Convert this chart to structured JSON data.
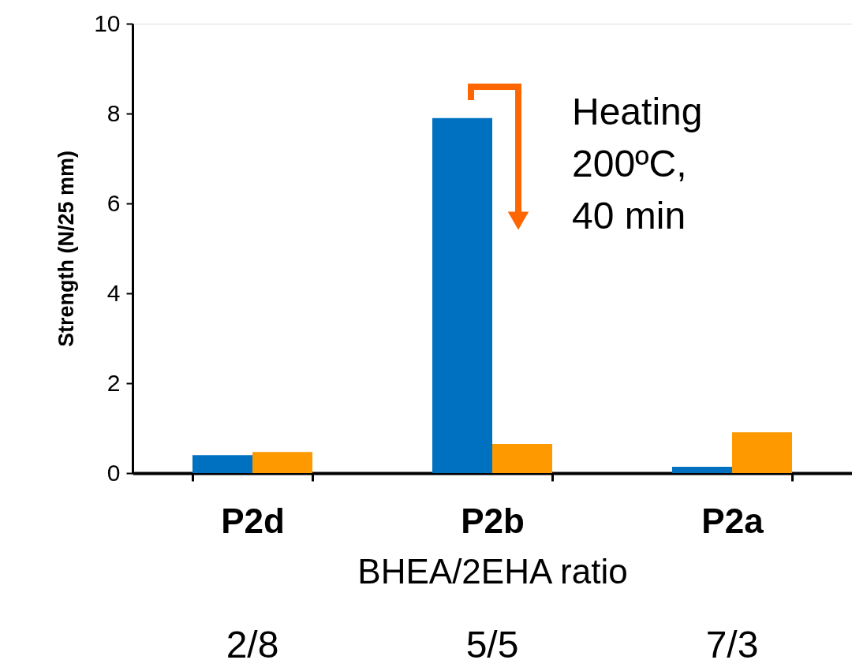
{
  "chart_data": {
    "type": "bar",
    "categories": [
      "P2d",
      "P2b",
      "P2a"
    ],
    "series": [
      {
        "color": "#0070c0",
        "values": [
          0.4,
          7.9,
          0.14
        ]
      },
      {
        "color": "#ff9900",
        "values": [
          0.47,
          0.65,
          0.91
        ]
      }
    ],
    "xlabel": "BHEA/2EHA ratio",
    "ylabel": "Strength (N/25 mm)",
    "ylim": [
      0,
      10
    ],
    "yticks": [
      0,
      2,
      4,
      6,
      8,
      10
    ],
    "grid": false,
    "legend": false,
    "annotations": [
      "Heating\n200ºC,\n40 min",
      "2/8",
      "5/5",
      "7/3"
    ]
  }
}
